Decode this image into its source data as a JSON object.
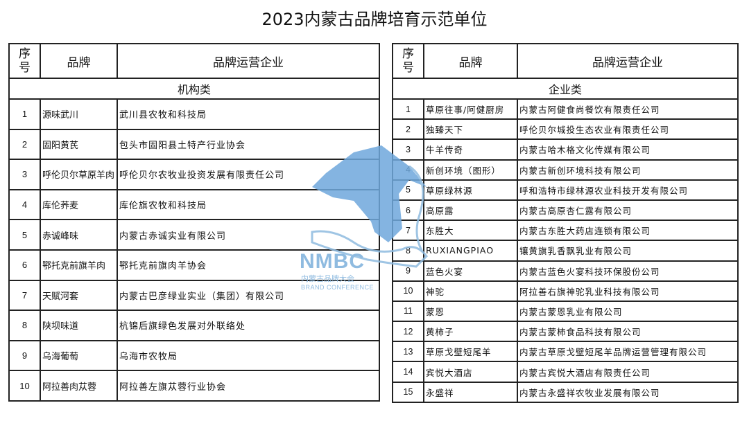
{
  "title": "2023内蒙古品牌培育示范单位",
  "headers": {
    "num": "序号",
    "brand": "品牌",
    "company": "品牌运营企业"
  },
  "left": {
    "category": "机构类",
    "rows": [
      {
        "n": "1",
        "brand": "源味武川",
        "company": "武川县农牧和科技局"
      },
      {
        "n": "2",
        "brand": "固阳黄芪",
        "company": "包头市固阳县土特产行业协会"
      },
      {
        "n": "3",
        "brand": "呼伦贝尔草原羊肉",
        "company": "呼伦贝尔农牧业投资发展有限责任公司"
      },
      {
        "n": "4",
        "brand": "库伦荞麦",
        "company": "库伦旗农牧和科技局"
      },
      {
        "n": "5",
        "brand": "赤诚峰味",
        "company": "内蒙古赤诚实业有限公司"
      },
      {
        "n": "6",
        "brand": "鄂托克前旗羊肉",
        "company": "鄂托克前旗肉羊协会"
      },
      {
        "n": "7",
        "brand": "天赋河套",
        "company": "内蒙古巴彦绿业实业（集团）有限公司"
      },
      {
        "n": "8",
        "brand": "陕坝味道",
        "company": "杭锦后旗绿色发展对外联络处"
      },
      {
        "n": "9",
        "brand": "乌海葡萄",
        "company": "乌海市农牧局"
      },
      {
        "n": "10",
        "brand": "阿拉善肉苁蓉",
        "company": "阿拉善左旗苁蓉行业协会"
      }
    ]
  },
  "right": {
    "category": "企业类",
    "rows": [
      {
        "n": "1",
        "brand": "草原往事/阿健厨房",
        "company": "内蒙古阿健食尚餐饮有限责任公司"
      },
      {
        "n": "2",
        "brand": "独臻天下",
        "company": "呼伦贝尔城投生态农业有限责任公司"
      },
      {
        "n": "3",
        "brand": "牛羊传奇",
        "company": "内蒙古哈木格文化传媒有限公司"
      },
      {
        "n": "4",
        "brand": "新创环境（图形）",
        "company": "内蒙古新创环境科技有限公司"
      },
      {
        "n": "5",
        "brand": "草原绿林源",
        "company": "呼和浩特市绿林源农业科技开发有限公司"
      },
      {
        "n": "6",
        "brand": "高原露",
        "company": "内蒙古高原杏仁露有限公司"
      },
      {
        "n": "7",
        "brand": "东胜大",
        "company": "内蒙古东胜大药店连锁有限公司"
      },
      {
        "n": "8",
        "brand": "RUXIANGPIAO",
        "company": "镶黄旗乳香飘乳业有限公司"
      },
      {
        "n": "9",
        "brand": "蓝色火宴",
        "company": "内蒙古蓝色火宴科技环保股份公司"
      },
      {
        "n": "10",
        "brand": "神驼",
        "company": "阿拉善右旗神驼乳业科技有限公司"
      },
      {
        "n": "11",
        "brand": "蒙恩",
        "company": "内蒙古蒙恩乳业有限公司"
      },
      {
        "n": "12",
        "brand": "黄柿子",
        "company": "内蒙古蒙柿食品科技有限公司"
      },
      {
        "n": "13",
        "brand": "草原戈壁短尾羊",
        "company": "内蒙古草原戈壁短尾羊品牌运营管理有限公司"
      },
      {
        "n": "14",
        "brand": "宾悦大酒店",
        "company": "内蒙古宾悦大酒店有限责任公司"
      },
      {
        "n": "15",
        "brand": "永盛祥",
        "company": "内蒙古永盛祥农牧业发展有限公司"
      }
    ]
  },
  "watermark": {
    "logo": "NMBC",
    "cn": "内蒙古品牌大会",
    "en": "BRAND CONFERENCE",
    "color": "#6fa8dc"
  }
}
